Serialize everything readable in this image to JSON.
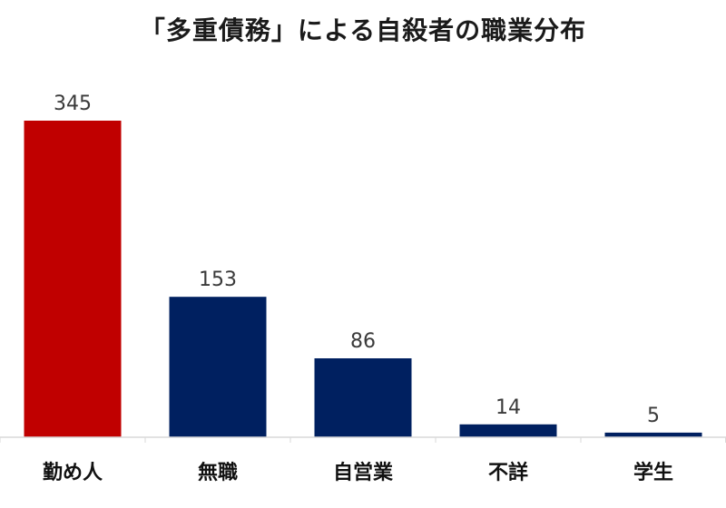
{
  "chart_data": {
    "type": "bar",
    "title": "「多重債務」による自殺者の職業分布",
    "xlabel": "",
    "ylabel": "",
    "categories": [
      "勤め人",
      "無職",
      "自営業",
      "不詳",
      "学生"
    ],
    "values": [
      345,
      153,
      86,
      14,
      5
    ],
    "data_labels": [
      "345",
      "153",
      "86",
      "14",
      "5"
    ],
    "ylim": [
      0,
      345
    ],
    "grid": false,
    "legend": "none",
    "colors": [
      "#c00000",
      "#002060",
      "#002060",
      "#002060",
      "#002060"
    ],
    "axis_line_color": "#d9d9d9"
  }
}
